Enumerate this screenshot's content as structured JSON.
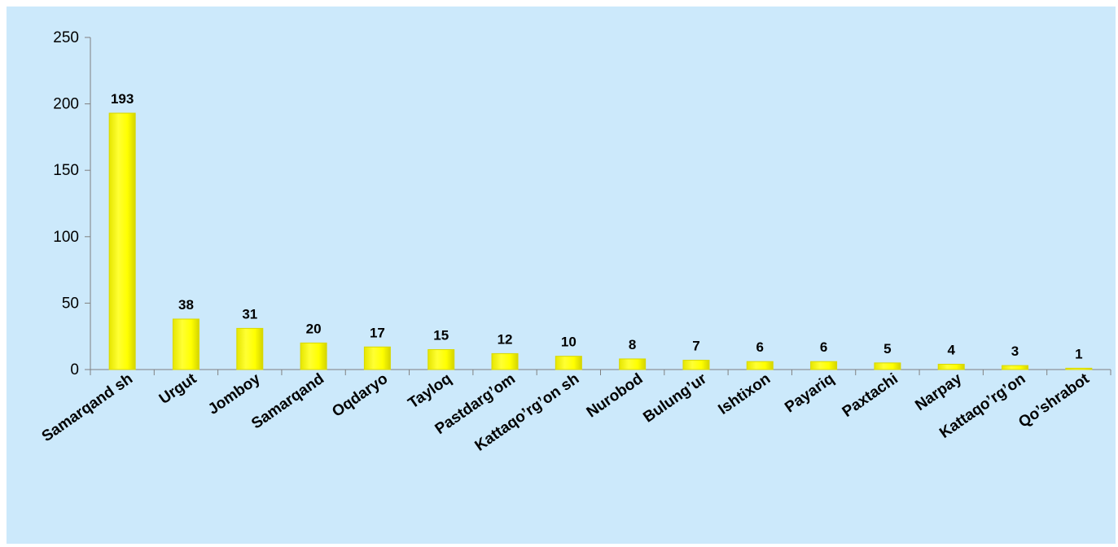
{
  "chart_data": {
    "type": "bar",
    "categories": [
      "Samarqand sh",
      "Urgut",
      "Jomboy",
      "Samarqand",
      "Oqdaryo",
      "Tayloq",
      "Pastdarg’om",
      "Kattaqo’rg’on sh",
      "Nurobod",
      "Bulung’ur",
      "Ishtixon",
      "Payariq",
      "Paxtachi",
      "Narpay",
      "Kattaqo’rg’on",
      "Qo’shrabot"
    ],
    "values": [
      193,
      38,
      31,
      20,
      17,
      15,
      12,
      10,
      8,
      7,
      6,
      6,
      5,
      4,
      3,
      1
    ],
    "y_ticks": [
      0,
      50,
      100,
      150,
      200,
      250
    ],
    "ylim": [
      0,
      250
    ],
    "title": "",
    "xlabel": "",
    "ylabel": "",
    "grid": false,
    "legend": "none",
    "bar_color": "#ffff00",
    "bar_edge_color": "#d8d800",
    "background": "#cce9fb"
  }
}
